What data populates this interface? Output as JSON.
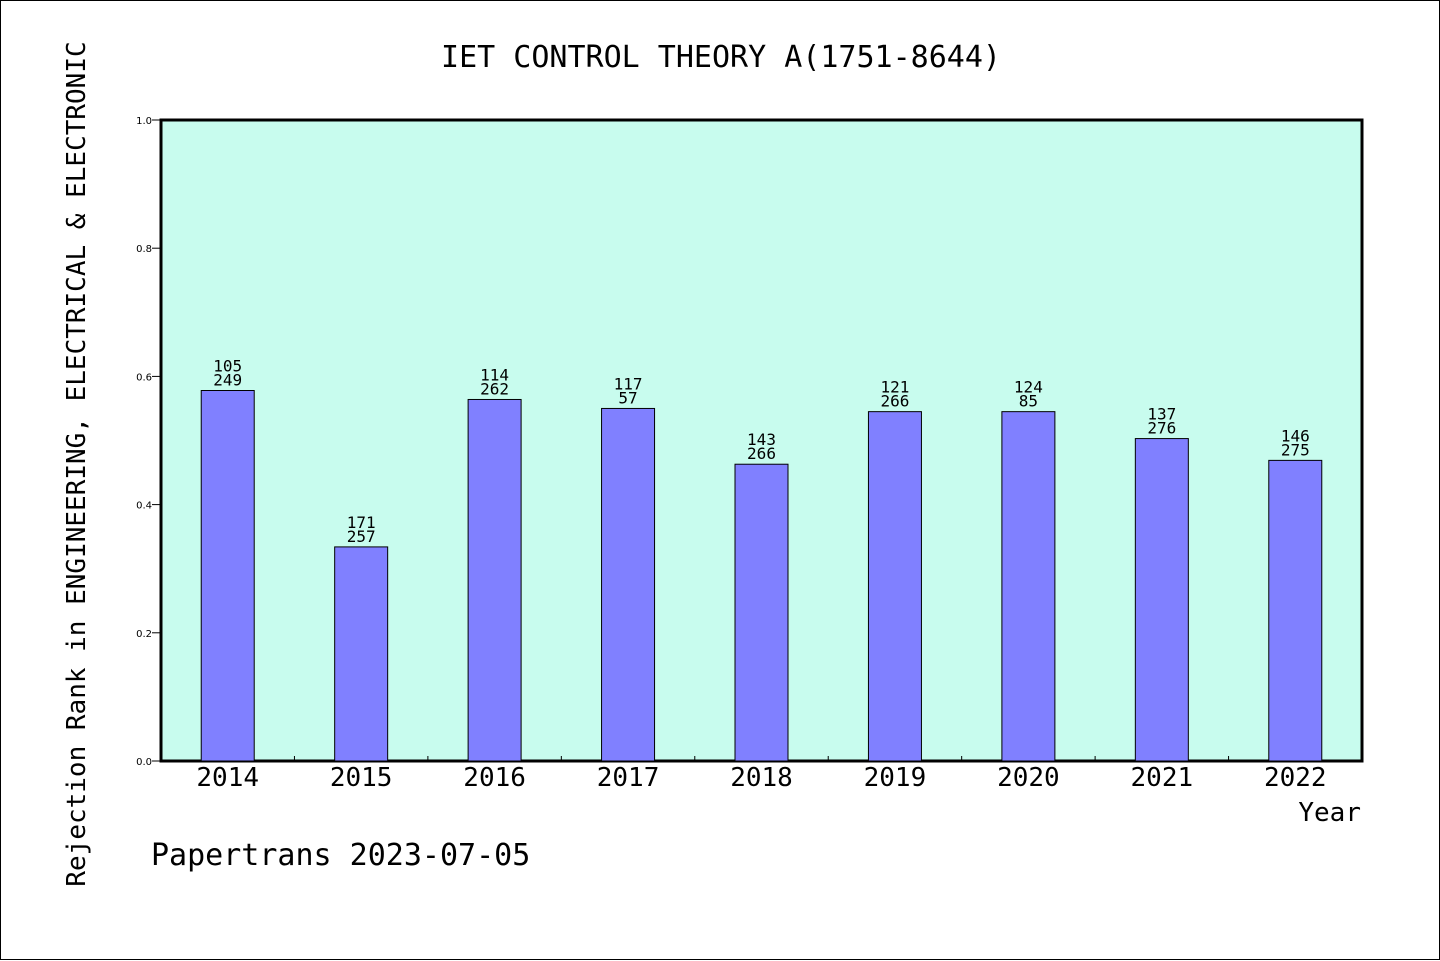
{
  "chart_data": {
    "type": "bar",
    "title": "IET CONTROL THEORY A(1751-8644)",
    "xlabel": "Year",
    "ylabel": "Rejection Rank in ENGINEERING, ELECTRICAL & ELECTRONIC",
    "categories": [
      "2014",
      "2015",
      "2016",
      "2017",
      "2018",
      "2019",
      "2020",
      "2021",
      "2022"
    ],
    "values": [
      0.578,
      0.334,
      0.564,
      0.55,
      0.463,
      0.545,
      0.545,
      0.503,
      0.469
    ],
    "labels_top": [
      "105",
      "171",
      "114",
      "117",
      "143",
      "121",
      "124",
      "137",
      "146"
    ],
    "labels_bottom": [
      "249",
      "257",
      "262",
      "57",
      "266",
      "266",
      "85",
      "276",
      "275"
    ],
    "ylim": [
      0,
      1.0
    ],
    "yticks": [
      "0.0",
      "0.2",
      "0.4",
      "0.6",
      "0.8",
      "1.0"
    ],
    "grid": false,
    "colors": {
      "plot_background": "#c8fcee",
      "bar": "#8080ff"
    }
  },
  "footer": {
    "credit": "Papertrans 2023-07-05"
  }
}
